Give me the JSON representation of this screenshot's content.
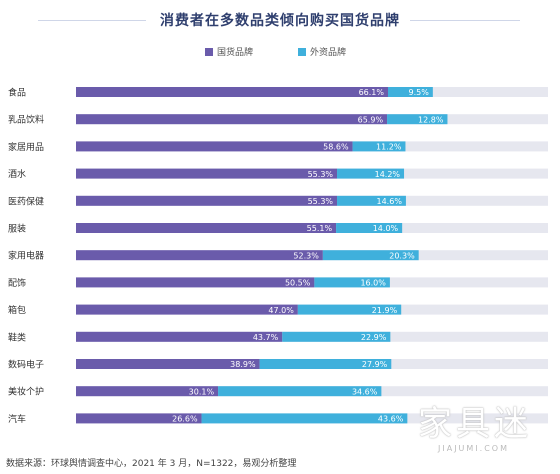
{
  "chart_data": {
    "type": "bar",
    "orientation": "horizontal",
    "stacked": true,
    "title": "消费者在多数品类倾向购买国货品牌",
    "categories": [
      "食品",
      "乳品饮料",
      "家居用品",
      "酒水",
      "医药保健",
      "服装",
      "家用电器",
      "配饰",
      "箱包",
      "鞋类",
      "数码电子",
      "美妆个护",
      "汽车"
    ],
    "series": [
      {
        "name": "国货品牌",
        "color": "#6a5bab",
        "values": [
          66.1,
          65.9,
          58.6,
          55.3,
          55.3,
          55.1,
          52.3,
          50.5,
          47.0,
          43.7,
          38.9,
          30.1,
          26.6
        ],
        "labels": [
          "66.1%",
          "65.9%",
          "58.6%",
          "55.3%",
          "55.3%",
          "55.1%",
          "52.3%",
          "50.5%",
          "47.0%",
          "43.7%",
          "38.9%",
          "30.1%",
          "26.6%"
        ]
      },
      {
        "name": "外资品牌",
        "color": "#3fb0dc",
        "values": [
          9.5,
          12.8,
          11.2,
          14.2,
          14.6,
          14.0,
          20.3,
          16.0,
          21.9,
          22.9,
          27.9,
          34.6,
          43.6
        ],
        "labels": [
          "9.5%",
          "12.8%",
          "11.2%",
          "14.2%",
          "14.6%",
          "14.0%",
          "20.3%",
          "16.0%",
          "21.9%",
          "22.9%",
          "27.9%",
          "34.6%",
          "43.6%"
        ]
      }
    ],
    "xlim": [
      0,
      100
    ],
    "legend_position": "top-center",
    "grid": false
  },
  "footnote": "数据来源：环球舆情调查中心，2021 年 3 月，N=1322，易观分析整理",
  "watermark": {
    "text": "家具迷",
    "subtext": "JIAJUMI.COM"
  }
}
